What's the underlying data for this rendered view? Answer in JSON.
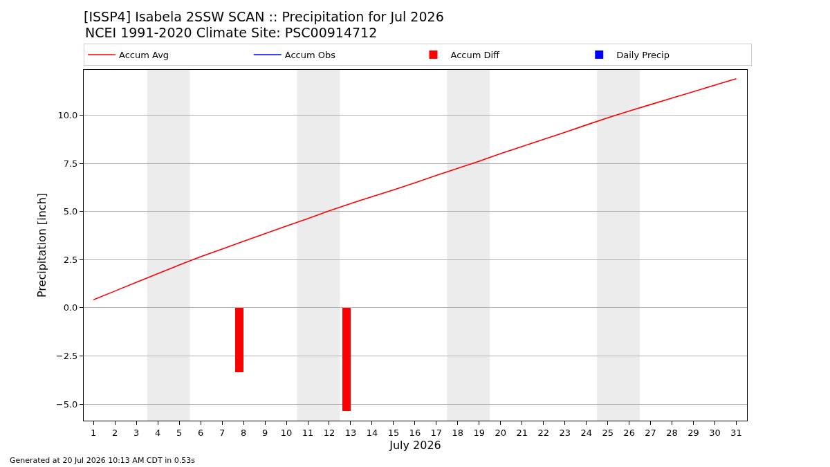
{
  "chart_data": {
    "type": "line",
    "title": "[ISSP4] Isabela 2SSW SCAN :: Precipitation for Jul 2026",
    "subtitle": "NCEI 1991-2020 Climate Site: PSC00914712",
    "xlabel": "July 2026",
    "ylabel": "Precipitation [inch]",
    "annotations": [
      "Generated at 20 Jul 2026 10:13 AM CDT in 0.53s"
    ],
    "x": [
      1,
      2,
      3,
      4,
      5,
      6,
      7,
      8,
      9,
      10,
      11,
      12,
      13,
      14,
      15,
      16,
      17,
      18,
      19,
      20,
      21,
      22,
      23,
      24,
      25,
      26,
      27,
      28,
      29,
      30,
      31
    ],
    "series": [
      {
        "name": "Accum Avg",
        "color": "#ff0000",
        "values": [
          0.42,
          0.87,
          1.32,
          1.77,
          2.22,
          2.65,
          3.05,
          3.45,
          3.85,
          4.24,
          4.63,
          5.03,
          5.41,
          5.77,
          6.12,
          6.49,
          6.87,
          7.24,
          7.61,
          8.0,
          8.37,
          8.74,
          9.11,
          9.49,
          9.86,
          10.21,
          10.55,
          10.89,
          11.22,
          11.56,
          11.89
        ]
      },
      {
        "name": "Accum Obs",
        "color": "#0000ff",
        "values": [
          null,
          null,
          null,
          null,
          null,
          null,
          null,
          null,
          null,
          null,
          null,
          null,
          null,
          null,
          null,
          null,
          null,
          null,
          null,
          null,
          null,
          null,
          null,
          null,
          null,
          null,
          null,
          null,
          null,
          null,
          null
        ]
      },
      {
        "name": "Accum Diff",
        "type": "bar",
        "color": "#ff0000",
        "x": [
          7.8,
          12.8
        ],
        "values": [
          -3.36,
          -5.34
        ]
      },
      {
        "name": "Daily Precip",
        "type": "bar",
        "color": "#0000ff",
        "values": [
          null,
          null,
          null,
          null,
          null,
          null,
          null,
          null,
          null,
          null,
          null,
          null,
          null,
          null,
          null,
          null,
          null,
          null,
          null,
          null,
          null,
          null,
          null,
          null,
          null,
          null,
          null,
          null,
          null,
          null,
          null
        ]
      }
    ],
    "xlim": [
      0.54,
      31.5
    ],
    "xticks": [
      1,
      2,
      3,
      4,
      5,
      6,
      7,
      8,
      9,
      10,
      11,
      12,
      13,
      14,
      15,
      16,
      17,
      18,
      19,
      20,
      21,
      22,
      23,
      24,
      25,
      26,
      27,
      28,
      29,
      30,
      31
    ],
    "ylim": [
      -5.86,
      12.35
    ],
    "yticks": [
      {
        "value": -5,
        "label": "−5.0"
      },
      {
        "value": -2.5,
        "label": "−2.5"
      },
      {
        "value": 0,
        "label": "0.0"
      },
      {
        "value": 2.5,
        "label": "2.5"
      },
      {
        "value": 5,
        "label": "5.0"
      },
      {
        "value": 7.5,
        "label": "7.5"
      },
      {
        "value": 10,
        "label": "10.0"
      }
    ],
    "bands": [
      {
        "axis": "x",
        "from": 3.5,
        "to": 5.5,
        "color": "#ececec"
      },
      {
        "axis": "x",
        "from": 10.5,
        "to": 12.5,
        "color": "#ececec"
      },
      {
        "axis": "x",
        "from": 17.5,
        "to": 19.5,
        "color": "#ececec"
      },
      {
        "axis": "x",
        "from": 24.5,
        "to": 26.5,
        "color": "#ececec"
      }
    ],
    "grid": "y",
    "legend": "top"
  }
}
